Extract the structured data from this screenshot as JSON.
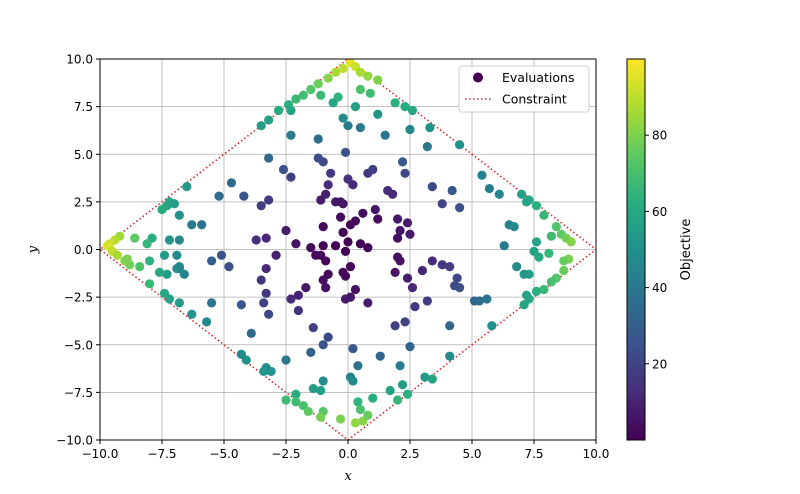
{
  "chart_data": {
    "type": "scatter",
    "xlabel": "x",
    "ylabel": "y",
    "xlim": [
      -10,
      10
    ],
    "ylim": [
      -10,
      10
    ],
    "xticks": [
      -10,
      -7.5,
      -5,
      -2.5,
      0,
      2.5,
      5,
      7.5,
      10
    ],
    "yticks": [
      -10,
      -7.5,
      -5,
      -2.5,
      0,
      2.5,
      5,
      7.5,
      10
    ],
    "xtick_labels": [
      "−10.0",
      "−7.5",
      "−5.0",
      "−2.5",
      "0.0",
      "2.5",
      "5.0",
      "7.5",
      "10.0"
    ],
    "ytick_labels": [
      "−10.0",
      "−7.5",
      "−5.0",
      "−2.5",
      "0.0",
      "2.5",
      "5.0",
      "7.5",
      "10.0"
    ],
    "grid": true,
    "colormap": "viridis",
    "colorbar": {
      "label": "Objective",
      "range": [
        0,
        100
      ],
      "ticks": [
        20,
        40,
        60,
        80
      ],
      "tick_labels": [
        "20",
        "40",
        "60",
        "80"
      ]
    },
    "legend": {
      "placement": "upper right",
      "entries": [
        "Evaluations",
        "Constraint"
      ]
    },
    "constraint": {
      "name": "Constraint",
      "color": "#d62728",
      "style": "dotted",
      "x": [
        0,
        10,
        0,
        -10,
        0
      ],
      "y": [
        10,
        0,
        -10,
        0,
        10
      ]
    },
    "series": [
      {
        "name": "Evaluations",
        "note": "color value = objective = x^2 + y^2",
        "points": [
          [
            0.1,
            9.8
          ],
          [
            0.3,
            9.6
          ],
          [
            -0.2,
            9.5
          ],
          [
            0.5,
            9.3
          ],
          [
            -0.5,
            9.3
          ],
          [
            0.8,
            9.1
          ],
          [
            -0.8,
            9.0
          ],
          [
            1.2,
            8.9
          ],
          [
            -1.2,
            8.7
          ],
          [
            -1.5,
            8.4
          ],
          [
            -1.8,
            8.1
          ],
          [
            -2.1,
            7.9
          ],
          [
            -2.4,
            7.6
          ],
          [
            -2.8,
            7.3
          ],
          [
            -3.2,
            6.8
          ],
          [
            0.9,
            8.2
          ],
          [
            0.5,
            8.4
          ],
          [
            -0.4,
            8.0
          ],
          [
            -1.1,
            8.1
          ],
          [
            -0.6,
            7.7
          ],
          [
            0.3,
            7.5
          ],
          [
            1.2,
            7.1
          ],
          [
            1.9,
            7.7
          ],
          [
            2.3,
            7.5
          ],
          [
            2.6,
            7.3
          ],
          [
            -2.3,
            7.3
          ],
          [
            1.5,
            6.0
          ],
          [
            2.5,
            6.3
          ],
          [
            3.3,
            6.4
          ],
          [
            4.5,
            5.5
          ],
          [
            3.2,
            5.4
          ],
          [
            -2.3,
            6.0
          ],
          [
            -3.5,
            6.5
          ],
          [
            0.5,
            6.4
          ],
          [
            0.0,
            6.5
          ],
          [
            -0.2,
            6.9
          ],
          [
            -1.2,
            5.8
          ],
          [
            -1.2,
            4.8
          ],
          [
            -1.0,
            4.6
          ],
          [
            -0.7,
            4.0
          ],
          [
            -3.2,
            4.8
          ],
          [
            -2.6,
            4.2
          ],
          [
            -2.3,
            3.8
          ],
          [
            0.8,
            4.0
          ],
          [
            1.0,
            4.2
          ],
          [
            2.2,
            4.6
          ],
          [
            2.3,
            4.0
          ],
          [
            -0.1,
            5.1
          ],
          [
            0.0,
            3.7
          ],
          [
            -0.8,
            3.4
          ],
          [
            0.2,
            3.4
          ],
          [
            4.2,
            3.1
          ],
          [
            3.4,
            3.3
          ],
          [
            3.8,
            2.4
          ],
          [
            4.5,
            2.2
          ],
          [
            -4.7,
            3.5
          ],
          [
            -5.2,
            2.8
          ],
          [
            -3.2,
            2.6
          ],
          [
            -3.5,
            2.3
          ],
          [
            -4.2,
            2.8
          ],
          [
            1.8,
            2.9
          ],
          [
            1.6,
            3.1
          ],
          [
            -0.5,
            2.5
          ],
          [
            -0.3,
            2.5
          ],
          [
            -0.2,
            2.4
          ],
          [
            -1.1,
            2.6
          ],
          [
            -0.9,
            2.9
          ],
          [
            0.6,
            1.9
          ],
          [
            1.1,
            2.1
          ],
          [
            1.2,
            1.6
          ],
          [
            -0.3,
            1.7
          ],
          [
            0.3,
            1.5
          ],
          [
            -1.0,
            1.2
          ],
          [
            -2.5,
            1.0
          ],
          [
            -2.1,
            0.3
          ],
          [
            -1.5,
            0.1
          ],
          [
            -1.0,
            0.2
          ],
          [
            -0.5,
            0.2
          ],
          [
            0.0,
            0.4
          ],
          [
            0.5,
            0.3
          ],
          [
            0.8,
            0.1
          ],
          [
            -0.2,
            0.9
          ],
          [
            0.1,
            1.3
          ],
          [
            -0.1,
            -0.1
          ],
          [
            -0.2,
            -1.2
          ],
          [
            -0.1,
            -1.4
          ],
          [
            0.1,
            -0.9
          ],
          [
            -0.9,
            -0.6
          ],
          [
            -1.1,
            -0.3
          ],
          [
            -1.3,
            -0.3
          ],
          [
            -0.8,
            -1.3
          ],
          [
            -1.0,
            -1.6
          ],
          [
            -0.9,
            -2.0
          ],
          [
            -1.7,
            -2.0
          ],
          [
            -2.0,
            -2.4
          ],
          [
            -2.0,
            -3.2
          ],
          [
            -2.3,
            -2.6
          ],
          [
            0.3,
            -2.1
          ],
          [
            0.1,
            -2.5
          ],
          [
            -0.1,
            -2.6
          ],
          [
            2.0,
            1.6
          ],
          [
            2.4,
            1.4
          ],
          [
            2.1,
            1.0
          ],
          [
            2.0,
            0.6
          ],
          [
            2.5,
            0.8
          ],
          [
            2.0,
            -0.4
          ],
          [
            2.1,
            -0.6
          ],
          [
            1.9,
            -1.2
          ],
          [
            2.4,
            -1.5
          ],
          [
            3.0,
            -1.1
          ],
          [
            2.6,
            -2.0
          ],
          [
            3.4,
            -0.6
          ],
          [
            3.8,
            -0.8
          ],
          [
            4.4,
            -1.5
          ],
          [
            4.3,
            -1.9
          ],
          [
            4.1,
            -0.9
          ],
          [
            3.2,
            -2.7
          ],
          [
            2.7,
            -3.0
          ],
          [
            1.9,
            -4.0
          ],
          [
            2.3,
            -3.8
          ],
          [
            0.8,
            -2.8
          ],
          [
            -3.7,
            0.5
          ],
          [
            -3.3,
            0.6
          ],
          [
            -2.9,
            -0.3
          ],
          [
            -3.3,
            -1.0
          ],
          [
            -3.5,
            -1.6
          ],
          [
            -3.3,
            -2.3
          ],
          [
            -3.4,
            -2.8
          ],
          [
            -3.2,
            -3.4
          ],
          [
            -4.3,
            -2.9
          ],
          [
            -3.9,
            -4.4
          ],
          [
            -1.4,
            -4.1
          ],
          [
            -4.3,
            -5.5
          ],
          [
            -4.1,
            -5.8
          ],
          [
            -3.3,
            -6.2
          ],
          [
            -3.4,
            -6.4
          ],
          [
            -3.1,
            -6.4
          ],
          [
            -2.5,
            -5.8
          ],
          [
            -1.5,
            -5.4
          ],
          [
            -1.0,
            -5.0
          ],
          [
            -0.8,
            -4.6
          ],
          [
            0.2,
            -5.2
          ],
          [
            0.4,
            -6.1
          ],
          [
            1.3,
            -5.6
          ],
          [
            2.1,
            -6.1
          ],
          [
            2.5,
            -5.1
          ],
          [
            3.1,
            -6.7
          ],
          [
            3.4,
            -6.8
          ],
          [
            4.1,
            -5.6
          ],
          [
            4.1,
            -4.0
          ],
          [
            5.1,
            -2.7
          ],
          [
            5.6,
            -2.6
          ],
          [
            5.8,
            -4.0
          ],
          [
            2.2,
            -7.1
          ],
          [
            1.7,
            -7.4
          ],
          [
            2.4,
            -7.6
          ],
          [
            2.0,
            -7.9
          ],
          [
            0.1,
            -6.7
          ],
          [
            0.2,
            -6.9
          ],
          [
            -1.0,
            -6.9
          ],
          [
            -1.1,
            -7.4
          ],
          [
            -1.4,
            -7.3
          ],
          [
            -2.1,
            -7.6
          ],
          [
            -2.5,
            -7.9
          ],
          [
            -2.1,
            -8.0
          ],
          [
            -1.8,
            -8.2
          ],
          [
            -1.6,
            -8.5
          ],
          [
            -1.0,
            -8.5
          ],
          [
            -1.1,
            -8.8
          ],
          [
            -0.3,
            -8.9
          ],
          [
            0.3,
            -9.1
          ],
          [
            0.6,
            -9.0
          ],
          [
            0.8,
            -8.7
          ],
          [
            0.5,
            -8.4
          ],
          [
            0.4,
            -8.0
          ],
          [
            1.0,
            -7.8
          ],
          [
            -7.2,
            2.5
          ],
          [
            -7.3,
            2.3
          ],
          [
            -7.0,
            2.4
          ],
          [
            -7.5,
            2.1
          ],
          [
            -6.8,
            1.8
          ],
          [
            -6.3,
            1.3
          ],
          [
            -5.9,
            1.3
          ],
          [
            -6.8,
            0.5
          ],
          [
            -7.2,
            0.5
          ],
          [
            -7.9,
            0.6
          ],
          [
            -8.1,
            0.3
          ],
          [
            -8.6,
            0.6
          ],
          [
            -9.2,
            0.7
          ],
          [
            -9.4,
            0.5
          ],
          [
            -9.6,
            0.3
          ],
          [
            -9.7,
            0.2
          ],
          [
            -9.5,
            -0.1
          ],
          [
            -9.3,
            -0.3
          ],
          [
            -9.0,
            -0.6
          ],
          [
            -8.8,
            -0.8
          ],
          [
            -8.9,
            -0.5
          ],
          [
            -8.4,
            -0.9
          ],
          [
            -8.0,
            -0.6
          ],
          [
            -7.6,
            -1.2
          ],
          [
            -6.9,
            -0.3
          ],
          [
            -6.8,
            -0.9
          ],
          [
            -6.9,
            -1.0
          ],
          [
            -6.6,
            -1.3
          ],
          [
            -7.3,
            -1.3
          ],
          [
            -6.8,
            -1.0
          ],
          [
            -8.0,
            -1.8
          ],
          [
            -7.4,
            -2.3
          ],
          [
            -7.2,
            -2.6
          ],
          [
            -6.8,
            -2.8
          ],
          [
            -6.3,
            -3.4
          ],
          [
            -5.5,
            -2.8
          ],
          [
            -5.1,
            -0.3
          ],
          [
            -5.5,
            -0.6
          ],
          [
            -4.8,
            -0.9
          ],
          [
            -5.7,
            -3.8
          ],
          [
            -6.5,
            3.3
          ],
          [
            -7.4,
            -0.3
          ],
          [
            5.4,
            3.9
          ],
          [
            5.7,
            3.2
          ],
          [
            6.1,
            2.9
          ],
          [
            6.3,
            0.2
          ],
          [
            7.0,
            2.9
          ],
          [
            7.3,
            2.6
          ],
          [
            7.6,
            2.3
          ],
          [
            7.2,
            2.5
          ],
          [
            7.9,
            1.8
          ],
          [
            7.6,
            0.4
          ],
          [
            7.5,
            -0.1
          ],
          [
            7.7,
            -0.4
          ],
          [
            8.1,
            -0.2
          ],
          [
            8.2,
            0.7
          ],
          [
            8.4,
            1.2
          ],
          [
            8.6,
            0.8
          ],
          [
            8.8,
            0.6
          ],
          [
            9.0,
            0.4
          ],
          [
            8.9,
            -0.5
          ],
          [
            8.7,
            -0.6
          ],
          [
            8.7,
            -1.1
          ],
          [
            8.4,
            -1.5
          ],
          [
            8.2,
            -1.7
          ],
          [
            7.9,
            -2.1
          ],
          [
            7.6,
            -2.2
          ],
          [
            7.3,
            -2.6
          ],
          [
            7.1,
            -2.9
          ],
          [
            7.2,
            -2.4
          ],
          [
            7.3,
            -1.3
          ],
          [
            7.1,
            -1.3
          ],
          [
            6.8,
            -0.9
          ],
          [
            6.5,
            1.3
          ],
          [
            6.7,
            1.2
          ],
          [
            4.5,
            -2.0
          ],
          [
            5.3,
            -2.7
          ]
        ]
      }
    ]
  }
}
